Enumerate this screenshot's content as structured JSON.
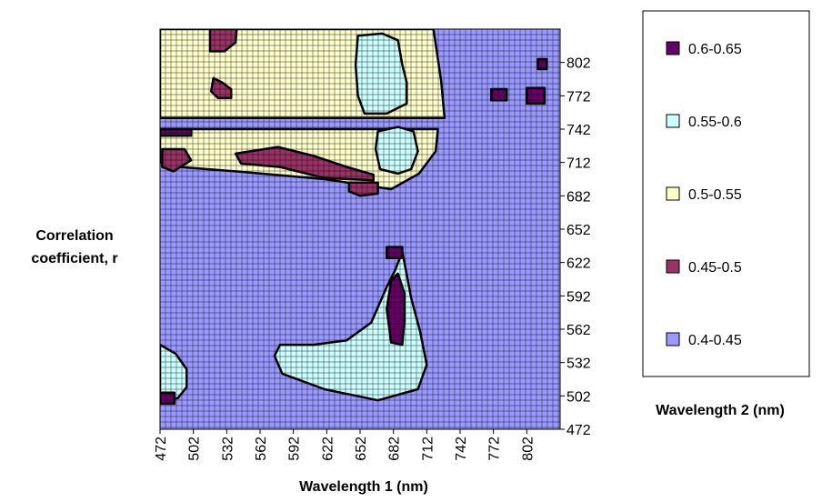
{
  "chart_data": {
    "type": "heatmap",
    "xlabel": "Wavelength 1 (nm)",
    "ylabel": "Correlation coefficient, r",
    "legend_title": "Wavelength 2 (nm)",
    "x_ticks": [
      472,
      502,
      532,
      562,
      592,
      622,
      652,
      682,
      712,
      742,
      772,
      802
    ],
    "y_ticks": [
      472,
      502,
      532,
      562,
      592,
      622,
      652,
      682,
      712,
      742,
      772,
      802
    ],
    "xlim": [
      472,
      832
    ],
    "ylim": [
      472,
      832
    ],
    "grid": true,
    "legend_position": "right",
    "classes": [
      {
        "label": "0.6-0.65",
        "color": "#660066"
      },
      {
        "label": "0.55-0.6",
        "color": "#ccffff"
      },
      {
        "label": "0.5-0.55",
        "color": "#ffffcc"
      },
      {
        "label": "0.45-0.5",
        "color": "#993366"
      },
      {
        "label": "0.4-0.45",
        "color": "#9999ff"
      }
    ],
    "regions": [
      {
        "class": "0.5-0.55",
        "polygon": [
          [
            472,
            832
          ],
          [
            718,
            832
          ],
          [
            725,
            785
          ],
          [
            728,
            752
          ],
          [
            690,
            752
          ],
          [
            560,
            752
          ],
          [
            472,
            752
          ]
        ]
      },
      {
        "class": "0.5-0.55",
        "polygon": [
          [
            472,
            742
          ],
          [
            560,
            742
          ],
          [
            650,
            742
          ],
          [
            700,
            742
          ],
          [
            722,
            742
          ],
          [
            720,
            722
          ],
          [
            705,
            702
          ],
          [
            680,
            688
          ],
          [
            620,
            697
          ],
          [
            540,
            704
          ],
          [
            490,
            708
          ],
          [
            472,
            712
          ]
        ]
      },
      {
        "class": "0.45-0.5",
        "polygon": [
          [
            517,
            832
          ],
          [
            541,
            832
          ],
          [
            540,
            820
          ],
          [
            530,
            812
          ],
          [
            517,
            812
          ]
        ]
      },
      {
        "class": "0.45-0.5",
        "polygon": [
          [
            520,
            788
          ],
          [
            528,
            784
          ],
          [
            536,
            778
          ],
          [
            536,
            770
          ],
          [
            524,
            770
          ],
          [
            518,
            776
          ]
        ]
      },
      {
        "class": "0.45-0.5",
        "polygon": [
          [
            474,
            724
          ],
          [
            494,
            724
          ],
          [
            500,
            714
          ],
          [
            484,
            704
          ],
          [
            474,
            708
          ]
        ]
      },
      {
        "class": "0.45-0.5",
        "polygon": [
          [
            540,
            720
          ],
          [
            578,
            726
          ],
          [
            610,
            718
          ],
          [
            640,
            708
          ],
          [
            664,
            701
          ],
          [
            664,
            696
          ],
          [
            620,
            698
          ],
          [
            580,
            708
          ],
          [
            545,
            711
          ]
        ]
      },
      {
        "class": "0.45-0.5",
        "polygon": [
          [
            642,
            694
          ],
          [
            668,
            694
          ],
          [
            668,
            684
          ],
          [
            652,
            682
          ],
          [
            642,
            686
          ]
        ]
      },
      {
        "class": "0.55-0.6",
        "polygon": [
          [
            650,
            826
          ],
          [
            672,
            828
          ],
          [
            686,
            822
          ],
          [
            690,
            800
          ],
          [
            694,
            784
          ],
          [
            694,
            765
          ],
          [
            676,
            756
          ],
          [
            656,
            756
          ],
          [
            650,
            772
          ],
          [
            648,
            800
          ]
        ]
      },
      {
        "class": "0.55-0.6",
        "polygon": [
          [
            668,
            740
          ],
          [
            686,
            744
          ],
          [
            700,
            740
          ],
          [
            704,
            722
          ],
          [
            698,
            706
          ],
          [
            686,
            702
          ],
          [
            670,
            706
          ],
          [
            666,
            724
          ]
        ]
      },
      {
        "class": "0.55-0.6",
        "polygon": [
          [
            580,
            548
          ],
          [
            610,
            548
          ],
          [
            640,
            552
          ],
          [
            662,
            568
          ],
          [
            676,
            600
          ],
          [
            684,
            616
          ],
          [
            690,
            632
          ],
          [
            698,
            590
          ],
          [
            706,
            560
          ],
          [
            712,
            530
          ],
          [
            704,
            508
          ],
          [
            668,
            498
          ],
          [
            620,
            508
          ],
          [
            582,
            522
          ],
          [
            575,
            538
          ]
        ]
      },
      {
        "class": "0.55-0.6",
        "polygon": [
          [
            472,
            498
          ],
          [
            488,
            500
          ],
          [
            496,
            510
          ],
          [
            496,
            526
          ],
          [
            486,
            540
          ],
          [
            472,
            548
          ]
        ]
      },
      {
        "class": "0.6-0.65",
        "polygon": [
          [
            686,
            612
          ],
          [
            692,
            594
          ],
          [
            692,
            570
          ],
          [
            690,
            548
          ],
          [
            680,
            550
          ],
          [
            676,
            580
          ],
          [
            680,
            606
          ]
        ]
      },
      {
        "class": "0.6-0.65",
        "polygon": [
          [
            802,
            779
          ],
          [
            818,
            779
          ],
          [
            818,
            765
          ],
          [
            802,
            765
          ]
        ]
      },
      {
        "class": "0.6-0.65",
        "polygon": [
          [
            812,
            805
          ],
          [
            820,
            805
          ],
          [
            820,
            796
          ],
          [
            812,
            796
          ]
        ]
      },
      {
        "class": "0.6-0.65",
        "polygon": [
          [
            770,
            778
          ],
          [
            784,
            778
          ],
          [
            784,
            768
          ],
          [
            770,
            768
          ]
        ]
      },
      {
        "class": "0.6-0.65",
        "polygon": [
          [
            472,
            742
          ],
          [
            500,
            742
          ],
          [
            500,
            736
          ],
          [
            472,
            736
          ]
        ]
      },
      {
        "class": "0.6-0.65",
        "polygon": [
          [
            472,
            505
          ],
          [
            485,
            505
          ],
          [
            485,
            495
          ],
          [
            472,
            495
          ]
        ]
      },
      {
        "class": "0.6-0.65",
        "polygon": [
          [
            676,
            636
          ],
          [
            690,
            636
          ],
          [
            690,
            626
          ],
          [
            676,
            626
          ]
        ]
      }
    ]
  }
}
